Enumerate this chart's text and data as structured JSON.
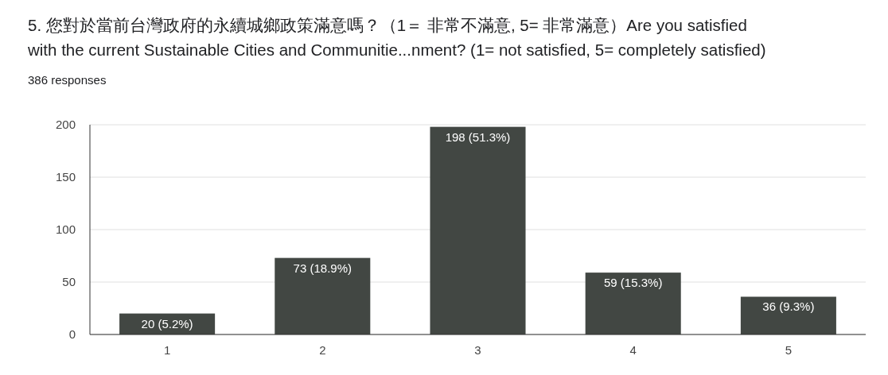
{
  "chart_data": {
    "type": "bar",
    "title": "5. 您對於當前台灣政府的永續城鄉政策滿意嗎？（1＝ 非常不滿意, 5= 非常滿意）Are you satisfied\nwith the current Sustainable Cities and Communitie...nment? (1= not satisfied, 5= completely satisfied)",
    "subtitle": "386 responses",
    "categories": [
      "1",
      "2",
      "3",
      "4",
      "5"
    ],
    "values": [
      20,
      73,
      198,
      59,
      36
    ],
    "value_labels": [
      "20 (5.2%)",
      "73 (18.9%)",
      "198 (51.3%)",
      "59 (15.3%)",
      "36 (9.3%)"
    ],
    "color": "#424743",
    "ylim": [
      0,
      200
    ],
    "yticks": [
      0,
      50,
      100,
      150,
      200
    ],
    "grid": "y"
  }
}
